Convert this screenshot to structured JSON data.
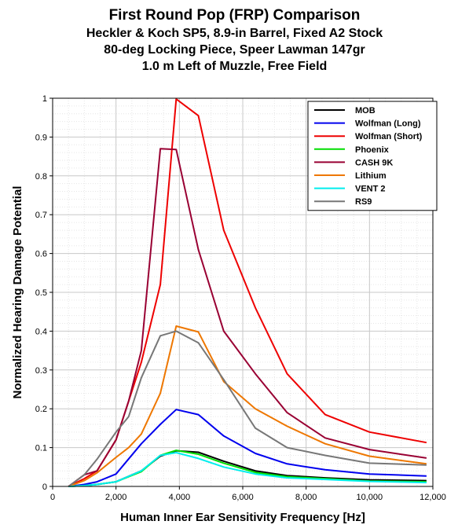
{
  "chart_data": {
    "type": "line",
    "title": "First Round Pop (FRP) Comparison",
    "subtitles": [
      "Heckler & Koch SP5, 8.9-in Barrel, Fixed A2 Stock",
      "80-deg Locking Piece, Speer Lawman 147gr",
      "1.0 m Left of Muzzle, Free Field"
    ],
    "xlabel": "Human Inner Ear Sensitivity Frequency [Hz]",
    "ylabel": "Normalized Hearing Damage Potential",
    "xlim": [
      0,
      12000
    ],
    "ylim": [
      0,
      1
    ],
    "xticks": [
      0,
      2000,
      4000,
      6000,
      8000,
      10000,
      12000
    ],
    "xtick_labels": [
      "0",
      "2,000",
      "4,000",
      "6,000",
      "8,000",
      "10,000",
      "12,000"
    ],
    "yticks": [
      0,
      0.1,
      0.2,
      0.3,
      0.4,
      0.5,
      0.6,
      0.7,
      0.8,
      0.9,
      1
    ],
    "ytick_labels": [
      "0",
      "0.1",
      "0.2",
      "0.3",
      "0.4",
      "0.5",
      "0.6",
      "0.7",
      "0.8",
      "0.9",
      "1"
    ],
    "grid": true,
    "legend_position": "top-right",
    "series": [
      {
        "name": "MOB",
        "color": "#000000",
        "x": [
          500,
          1000,
          1400,
          2000,
          2800,
          3400,
          3900,
          4600,
          5400,
          6400,
          7400,
          8600,
          10000,
          11800
        ],
        "y": [
          0,
          0.002,
          0.005,
          0.012,
          0.04,
          0.078,
          0.092,
          0.088,
          0.065,
          0.04,
          0.028,
          0.022,
          0.017,
          0.015
        ]
      },
      {
        "name": "Wolfman (Long)",
        "color": "#0000ee",
        "x": [
          500,
          1000,
          1400,
          2000,
          2800,
          3400,
          3900,
          4600,
          5400,
          6400,
          7400,
          8600,
          10000,
          11800
        ],
        "y": [
          0,
          0.005,
          0.012,
          0.032,
          0.11,
          0.16,
          0.198,
          0.185,
          0.13,
          0.085,
          0.058,
          0.043,
          0.032,
          0.027
        ]
      },
      {
        "name": "Wolfman (Short)",
        "color": "#ee0000",
        "x": [
          500,
          1000,
          1400,
          2000,
          2800,
          3400,
          3900,
          4600,
          5400,
          6400,
          7400,
          8600,
          10000,
          11800
        ],
        "y": [
          0,
          0.02,
          0.04,
          0.12,
          0.32,
          0.52,
          0.998,
          0.955,
          0.66,
          0.46,
          0.29,
          0.185,
          0.14,
          0.113
        ]
      },
      {
        "name": "Phoenix",
        "color": "#00dd00",
        "x": [
          500,
          1000,
          1400,
          2000,
          2800,
          3400,
          3900,
          4600,
          5400,
          6400,
          7400,
          8600,
          10000,
          11800
        ],
        "y": [
          0,
          0.002,
          0.005,
          0.012,
          0.038,
          0.08,
          0.093,
          0.083,
          0.06,
          0.036,
          0.025,
          0.02,
          0.014,
          0.012
        ]
      },
      {
        "name": "CASH 9K",
        "color": "#990033",
        "x": [
          500,
          1000,
          1400,
          2000,
          2400,
          2800,
          3400,
          3900,
          4600,
          5400,
          6400,
          7400,
          8600,
          10000,
          11800
        ],
        "y": [
          0,
          0.03,
          0.04,
          0.12,
          0.22,
          0.35,
          0.87,
          0.868,
          0.61,
          0.4,
          0.29,
          0.19,
          0.125,
          0.095,
          0.073
        ]
      },
      {
        "name": "Lithium",
        "color": "#ee7700",
        "x": [
          500,
          1000,
          1400,
          2000,
          2400,
          2800,
          3400,
          3900,
          4600,
          5400,
          6400,
          7400,
          8600,
          10000,
          11800
        ],
        "y": [
          0,
          0.015,
          0.035,
          0.075,
          0.1,
          0.135,
          0.24,
          0.413,
          0.398,
          0.27,
          0.2,
          0.155,
          0.11,
          0.078,
          0.058
        ]
      },
      {
        "name": "VENT 2",
        "color": "#00eeee",
        "x": [
          500,
          1000,
          1400,
          2000,
          2800,
          3400,
          3900,
          4600,
          5400,
          6400,
          7400,
          8600,
          10000,
          11800
        ],
        "y": [
          0,
          0.002,
          0.005,
          0.012,
          0.04,
          0.08,
          0.087,
          0.072,
          0.05,
          0.032,
          0.022,
          0.018,
          0.013,
          0.01
        ]
      },
      {
        "name": "RS9",
        "color": "#777777",
        "x": [
          500,
          1000,
          1400,
          2000,
          2400,
          2800,
          3400,
          3900,
          4600,
          5400,
          6400,
          7400,
          8600,
          10000,
          11800
        ],
        "y": [
          0,
          0.03,
          0.07,
          0.14,
          0.18,
          0.28,
          0.388,
          0.4,
          0.37,
          0.275,
          0.15,
          0.1,
          0.08,
          0.06,
          0.055
        ]
      }
    ]
  }
}
